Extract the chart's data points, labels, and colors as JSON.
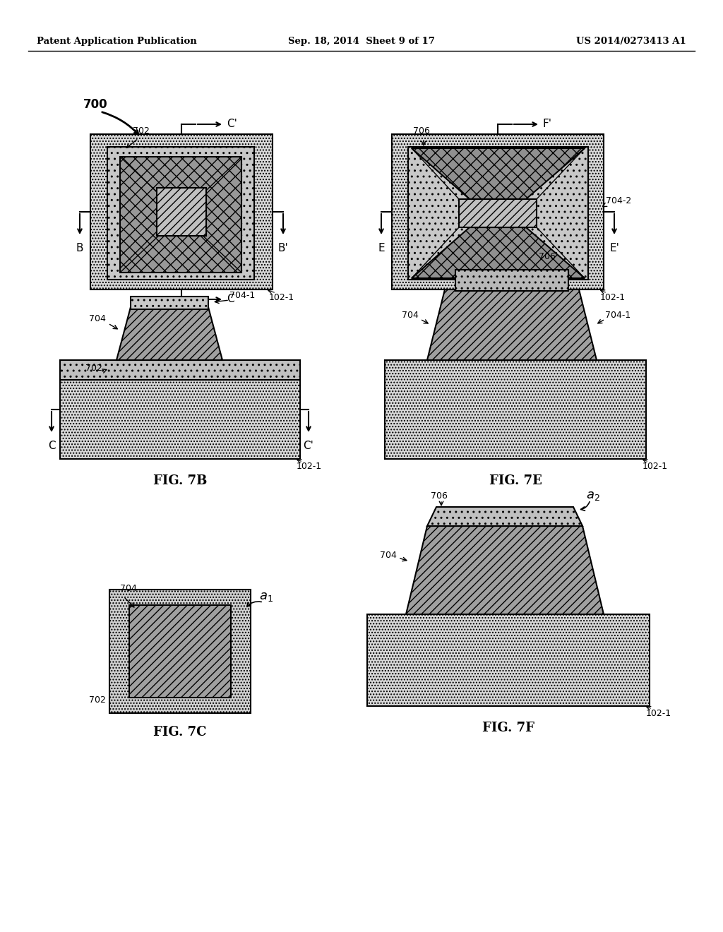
{
  "title_left": "Patent Application Publication",
  "title_center": "Sep. 18, 2014  Sheet 9 of 17",
  "title_right": "US 2014/0273413 A1",
  "bg_color": "#ffffff"
}
